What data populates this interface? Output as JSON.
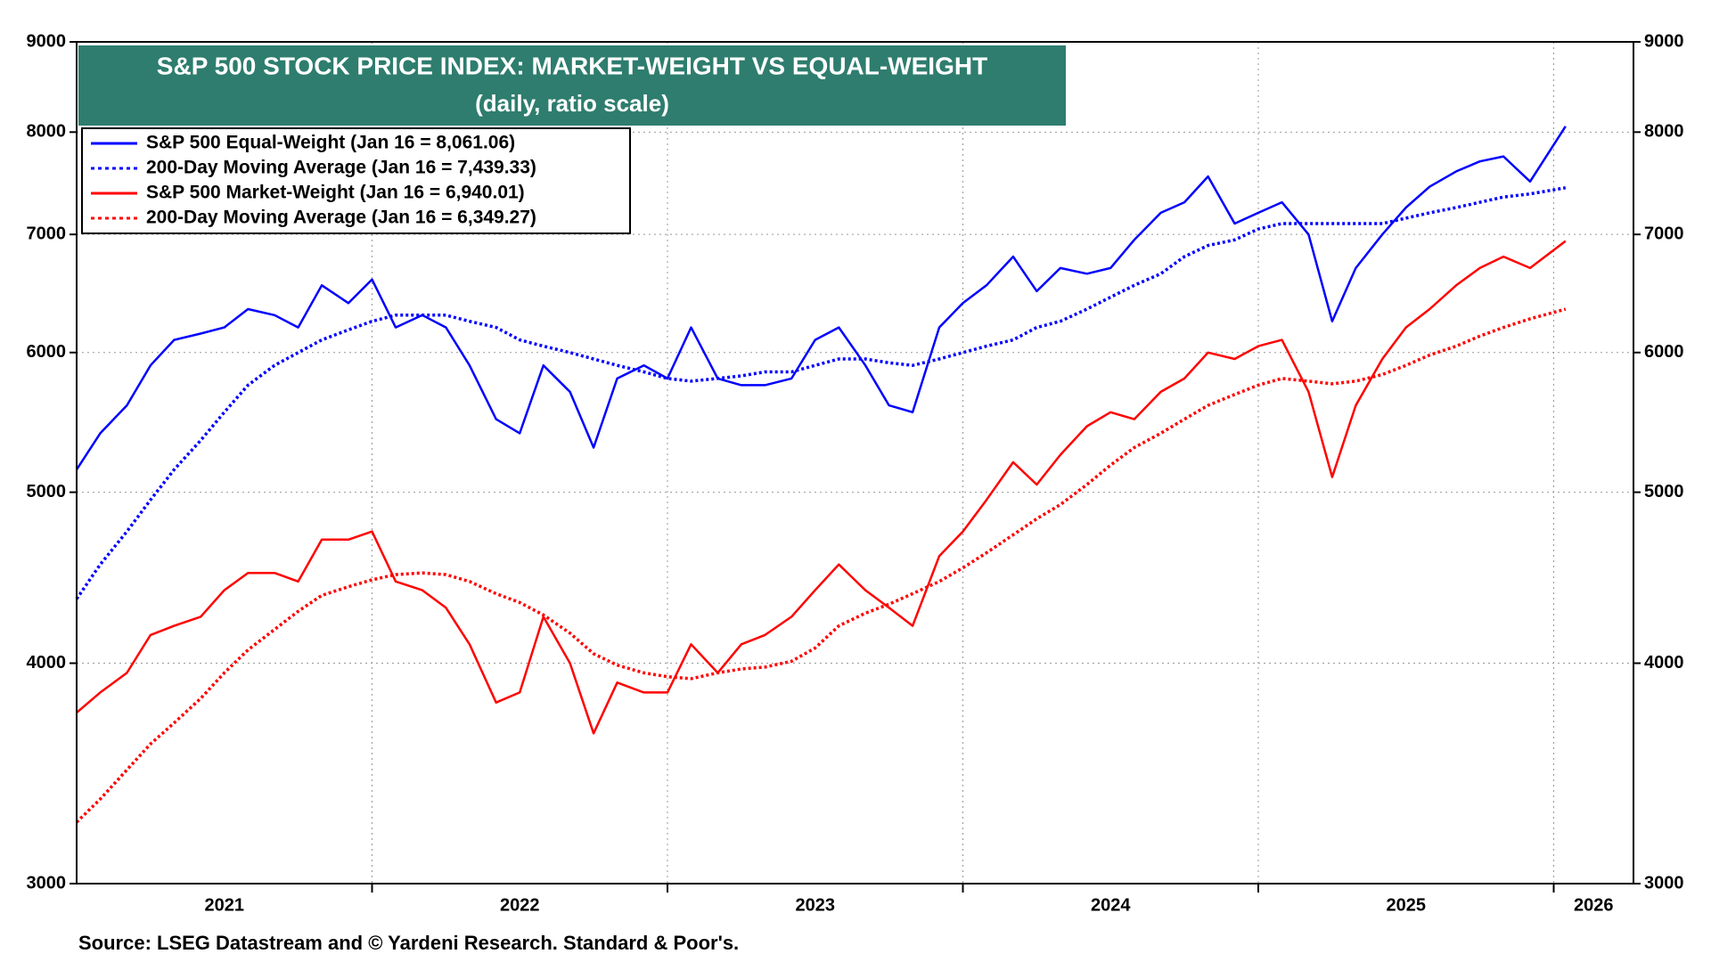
{
  "chart_data": {
    "type": "line",
    "title": "S&P 500 STOCK PRICE INDEX: MARKET-WEIGHT VS EQUAL-WEIGHT",
    "subtitle": "(daily, ratio scale)",
    "source": "Source: LSEG Datastream and © Yardeni Research. Standard & Poor's.",
    "log_scale": true,
    "grid": true,
    "legend_position": "upper left",
    "xlim": [
      2021.0,
      2026.27
    ],
    "xticks": [
      {
        "value": 2021.5,
        "label": "2021"
      },
      {
        "value": 2022.5,
        "label": "2022"
      },
      {
        "value": 2023.5,
        "label": "2023"
      },
      {
        "value": 2024.5,
        "label": "2024"
      },
      {
        "value": 2025.5,
        "label": "2025"
      },
      {
        "value": 2026.5,
        "label": "2026"
      }
    ],
    "ylim": [
      3000,
      9000
    ],
    "yticks": [
      3000,
      4000,
      5000,
      6000,
      7000,
      8000,
      9000
    ],
    "y2lim": [
      3000,
      9000
    ],
    "y2ticks": [
      3000,
      4000,
      5000,
      6000,
      7000,
      8000,
      9000
    ],
    "x": [
      2021.0,
      2021.08,
      2021.17,
      2021.25,
      2021.33,
      2021.42,
      2021.5,
      2021.58,
      2021.67,
      2021.75,
      2021.83,
      2021.92,
      2022.0,
      2022.08,
      2022.17,
      2022.25,
      2022.33,
      2022.42,
      2022.5,
      2022.58,
      2022.67,
      2022.75,
      2022.83,
      2022.92,
      2023.0,
      2023.08,
      2023.17,
      2023.25,
      2023.33,
      2023.42,
      2023.5,
      2023.58,
      2023.67,
      2023.75,
      2023.83,
      2023.92,
      2024.0,
      2024.08,
      2024.17,
      2024.25,
      2024.33,
      2024.42,
      2024.5,
      2024.58,
      2024.67,
      2024.75,
      2024.83,
      2024.92,
      2025.0,
      2025.08,
      2025.17,
      2025.25,
      2025.33,
      2025.42,
      2025.5,
      2025.58,
      2025.67,
      2025.75,
      2025.83,
      2025.92,
      2026.04
    ],
    "series": [
      {
        "name": "S&P 500 Equal-Weight (Jan 16 = 8,061.06)",
        "color": "#0000ff",
        "dash": "solid",
        "values": [
          5150,
          5400,
          5600,
          5900,
          6100,
          6150,
          6200,
          6350,
          6300,
          6200,
          6550,
          6400,
          6600,
          6200,
          6300,
          6200,
          5900,
          5500,
          5400,
          5900,
          5700,
          5300,
          5800,
          5900,
          5800,
          6200,
          5800,
          5750,
          5750,
          5800,
          6100,
          6200,
          5900,
          5600,
          5550,
          6200,
          6400,
          6550,
          6800,
          6500,
          6700,
          6650,
          6700,
          6950,
          7200,
          7300,
          7550,
          7100,
          7200,
          7300,
          7000,
          6250,
          6700,
          7000,
          7250,
          7450,
          7600,
          7700,
          7750,
          7500,
          8061.06
        ]
      },
      {
        "name": "200-Day Moving Average (Jan 16 = 7,439.33)",
        "color": "#0000ff",
        "dash": "dotted",
        "values": [
          4350,
          4550,
          4750,
          4950,
          5150,
          5350,
          5550,
          5750,
          5900,
          6000,
          6100,
          6180,
          6250,
          6300,
          6300,
          6300,
          6250,
          6200,
          6100,
          6050,
          6000,
          5950,
          5900,
          5850,
          5800,
          5780,
          5800,
          5820,
          5850,
          5850,
          5900,
          5950,
          5950,
          5920,
          5900,
          5950,
          6000,
          6050,
          6100,
          6200,
          6250,
          6350,
          6450,
          6550,
          6650,
          6800,
          6900,
          6950,
          7050,
          7100,
          7100,
          7100,
          7100,
          7100,
          7150,
          7200,
          7250,
          7300,
          7350,
          7380,
          7439.33
        ]
      },
      {
        "name": "S&P 500 Market-Weight (Jan 16 = 6,940.01)",
        "color": "#ff0000",
        "dash": "solid",
        "values": [
          3750,
          3850,
          3950,
          4150,
          4200,
          4250,
          4400,
          4500,
          4500,
          4450,
          4700,
          4700,
          4750,
          4450,
          4400,
          4300,
          4100,
          3800,
          3850,
          4250,
          4000,
          3650,
          3900,
          3850,
          3850,
          4100,
          3950,
          4100,
          4150,
          4250,
          4400,
          4550,
          4400,
          4300,
          4200,
          4600,
          4750,
          4950,
          5200,
          5050,
          5250,
          5450,
          5550,
          5500,
          5700,
          5800,
          6000,
          5950,
          6050,
          6100,
          5700,
          5100,
          5600,
          5950,
          6200,
          6350,
          6550,
          6700,
          6800,
          6700,
          6940.01
        ]
      },
      {
        "name": "200-Day Moving Average (Jan 16 = 6,349.27)",
        "color": "#ff0000",
        "dash": "dotted",
        "values": [
          3250,
          3350,
          3480,
          3600,
          3700,
          3820,
          3950,
          4070,
          4180,
          4280,
          4370,
          4420,
          4460,
          4490,
          4500,
          4490,
          4450,
          4380,
          4330,
          4260,
          4160,
          4050,
          3990,
          3950,
          3930,
          3920,
          3950,
          3970,
          3980,
          4010,
          4080,
          4200,
          4270,
          4320,
          4380,
          4450,
          4530,
          4620,
          4730,
          4830,
          4920,
          5050,
          5180,
          5300,
          5400,
          5500,
          5600,
          5680,
          5750,
          5800,
          5780,
          5760,
          5780,
          5830,
          5900,
          5980,
          6050,
          6130,
          6200,
          6270,
          6349.27
        ]
      }
    ]
  }
}
